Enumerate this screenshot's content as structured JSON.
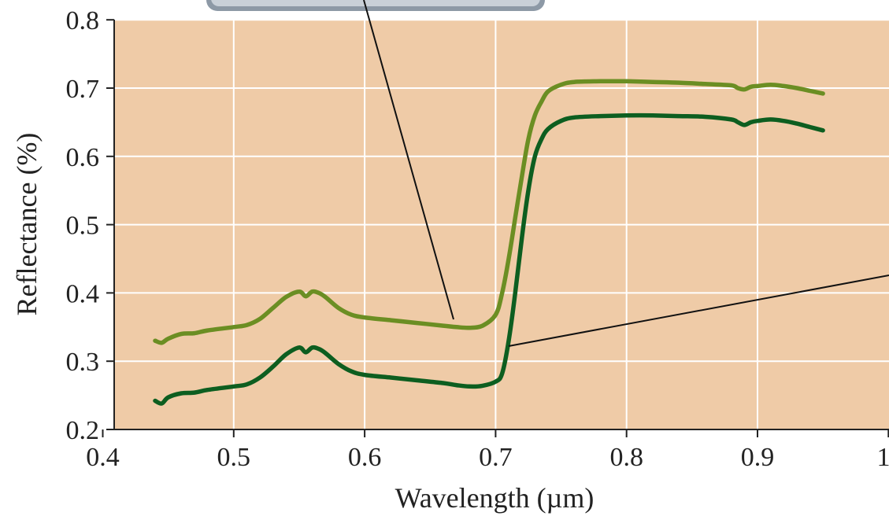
{
  "chart_data": {
    "type": "line",
    "xlabel": "Wavelength (µm)",
    "ylabel": "Reflectance (%)",
    "xlim": [
      0.4,
      1.0
    ],
    "ylim": [
      0.2,
      0.8
    ],
    "x_ticks": [
      "0.4",
      "0.5",
      "0.6",
      "0.7",
      "0.8",
      "0.9",
      "1"
    ],
    "y_ticks": [
      "0.2",
      "0.3",
      "0.4",
      "0.5",
      "0.6",
      "0.7",
      "0.8"
    ],
    "grid": true,
    "background_color": "#efcba7",
    "series": [
      {
        "color": "#6b8e23",
        "x": [
          0.44,
          0.445,
          0.45,
          0.46,
          0.47,
          0.48,
          0.5,
          0.51,
          0.52,
          0.53,
          0.54,
          0.55,
          0.555,
          0.56,
          0.565,
          0.57,
          0.58,
          0.59,
          0.6,
          0.62,
          0.64,
          0.66,
          0.67,
          0.68,
          0.69,
          0.7,
          0.705,
          0.71,
          0.715,
          0.72,
          0.725,
          0.73,
          0.735,
          0.74,
          0.75,
          0.76,
          0.78,
          0.8,
          0.82,
          0.84,
          0.86,
          0.88,
          0.885,
          0.89,
          0.895,
          0.9,
          0.91,
          0.92,
          0.93,
          0.94,
          0.95
        ],
        "y": [
          0.33,
          0.327,
          0.333,
          0.34,
          0.341,
          0.345,
          0.35,
          0.353,
          0.362,
          0.378,
          0.394,
          0.402,
          0.395,
          0.402,
          0.4,
          0.394,
          0.378,
          0.368,
          0.364,
          0.36,
          0.356,
          0.352,
          0.35,
          0.349,
          0.352,
          0.368,
          0.4,
          0.45,
          0.51,
          0.57,
          0.625,
          0.66,
          0.68,
          0.695,
          0.705,
          0.709,
          0.71,
          0.71,
          0.709,
          0.708,
          0.706,
          0.704,
          0.7,
          0.698,
          0.702,
          0.703,
          0.705,
          0.703,
          0.7,
          0.696,
          0.692
        ]
      },
      {
        "color": "#0d5e20",
        "x": [
          0.44,
          0.445,
          0.45,
          0.46,
          0.47,
          0.48,
          0.5,
          0.51,
          0.52,
          0.53,
          0.54,
          0.55,
          0.555,
          0.56,
          0.565,
          0.57,
          0.58,
          0.59,
          0.6,
          0.62,
          0.64,
          0.66,
          0.67,
          0.68,
          0.69,
          0.7,
          0.705,
          0.71,
          0.715,
          0.72,
          0.725,
          0.73,
          0.735,
          0.74,
          0.75,
          0.76,
          0.78,
          0.8,
          0.82,
          0.84,
          0.86,
          0.88,
          0.885,
          0.89,
          0.895,
          0.9,
          0.91,
          0.92,
          0.93,
          0.94,
          0.95
        ],
        "y": [
          0.242,
          0.238,
          0.247,
          0.253,
          0.254,
          0.258,
          0.263,
          0.266,
          0.276,
          0.292,
          0.31,
          0.32,
          0.313,
          0.32,
          0.318,
          0.312,
          0.296,
          0.285,
          0.28,
          0.276,
          0.272,
          0.268,
          0.265,
          0.263,
          0.264,
          0.27,
          0.282,
          0.33,
          0.4,
          0.48,
          0.55,
          0.6,
          0.625,
          0.64,
          0.652,
          0.657,
          0.659,
          0.66,
          0.66,
          0.659,
          0.658,
          0.654,
          0.65,
          0.646,
          0.65,
          0.652,
          0.654,
          0.652,
          0.648,
          0.643,
          0.638
        ]
      }
    ]
  }
}
